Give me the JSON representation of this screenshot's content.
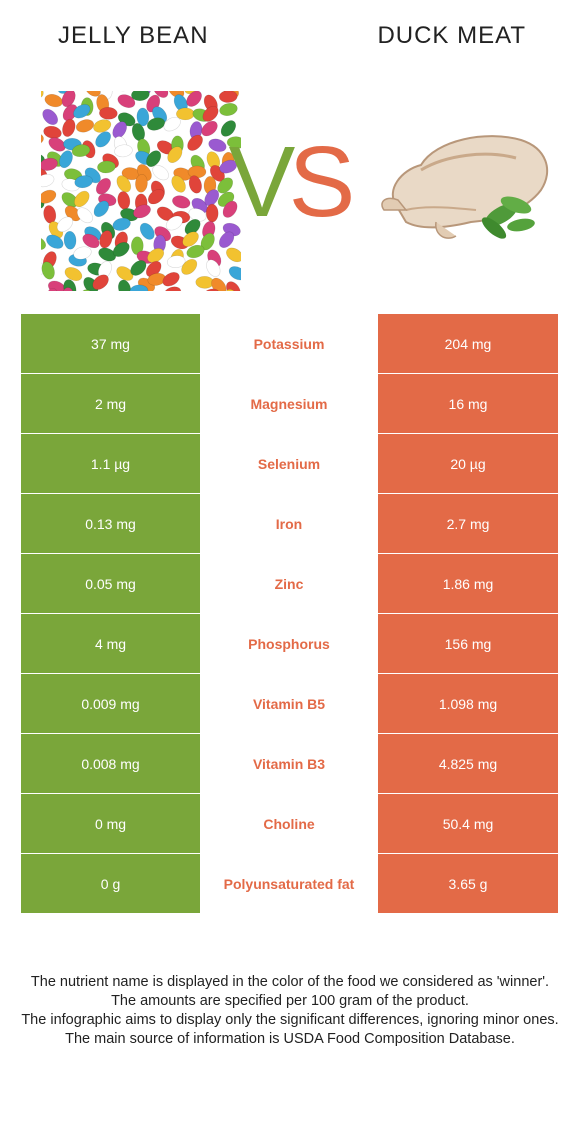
{
  "header": {
    "left_title": "JELLY BEAN",
    "right_title": "DUCK MEAT",
    "vs_left": "V",
    "vs_right": "S"
  },
  "colors": {
    "left_food": "#7aa63a",
    "right_food": "#e36a47",
    "text": "#222222"
  },
  "rows": [
    {
      "left": "37 mg",
      "nutrient": "Potassium",
      "right": "204 mg"
    },
    {
      "left": "2 mg",
      "nutrient": "Magnesium",
      "right": "16 mg"
    },
    {
      "left": "1.1 µg",
      "nutrient": "Selenium",
      "right": "20 µg"
    },
    {
      "left": "0.13 mg",
      "nutrient": "Iron",
      "right": "2.7 mg"
    },
    {
      "left": "0.05 mg",
      "nutrient": "Zinc",
      "right": "1.86 mg"
    },
    {
      "left": "4 mg",
      "nutrient": "Phosphorus",
      "right": "156 mg"
    },
    {
      "left": "0.009 mg",
      "nutrient": "Vitamin B5",
      "right": "1.098 mg"
    },
    {
      "left": "0.008 mg",
      "nutrient": "Vitamin B3",
      "right": "4.825 mg"
    },
    {
      "left": "0 mg",
      "nutrient": "Choline",
      "right": "50.4 mg"
    },
    {
      "left": "0 g",
      "nutrient": "Polyunsaturated fat",
      "right": "3.65 g"
    }
  ],
  "footer": {
    "line1": "The nutrient name is displayed in the color of the food we considered as 'winner'.",
    "line2": "The amounts are specified per 100 gram of the product.",
    "line3": "The infographic aims to display only the significant differences, ignoring minor ones.",
    "line4": "The main source of information is USDA Food Composition Database."
  }
}
